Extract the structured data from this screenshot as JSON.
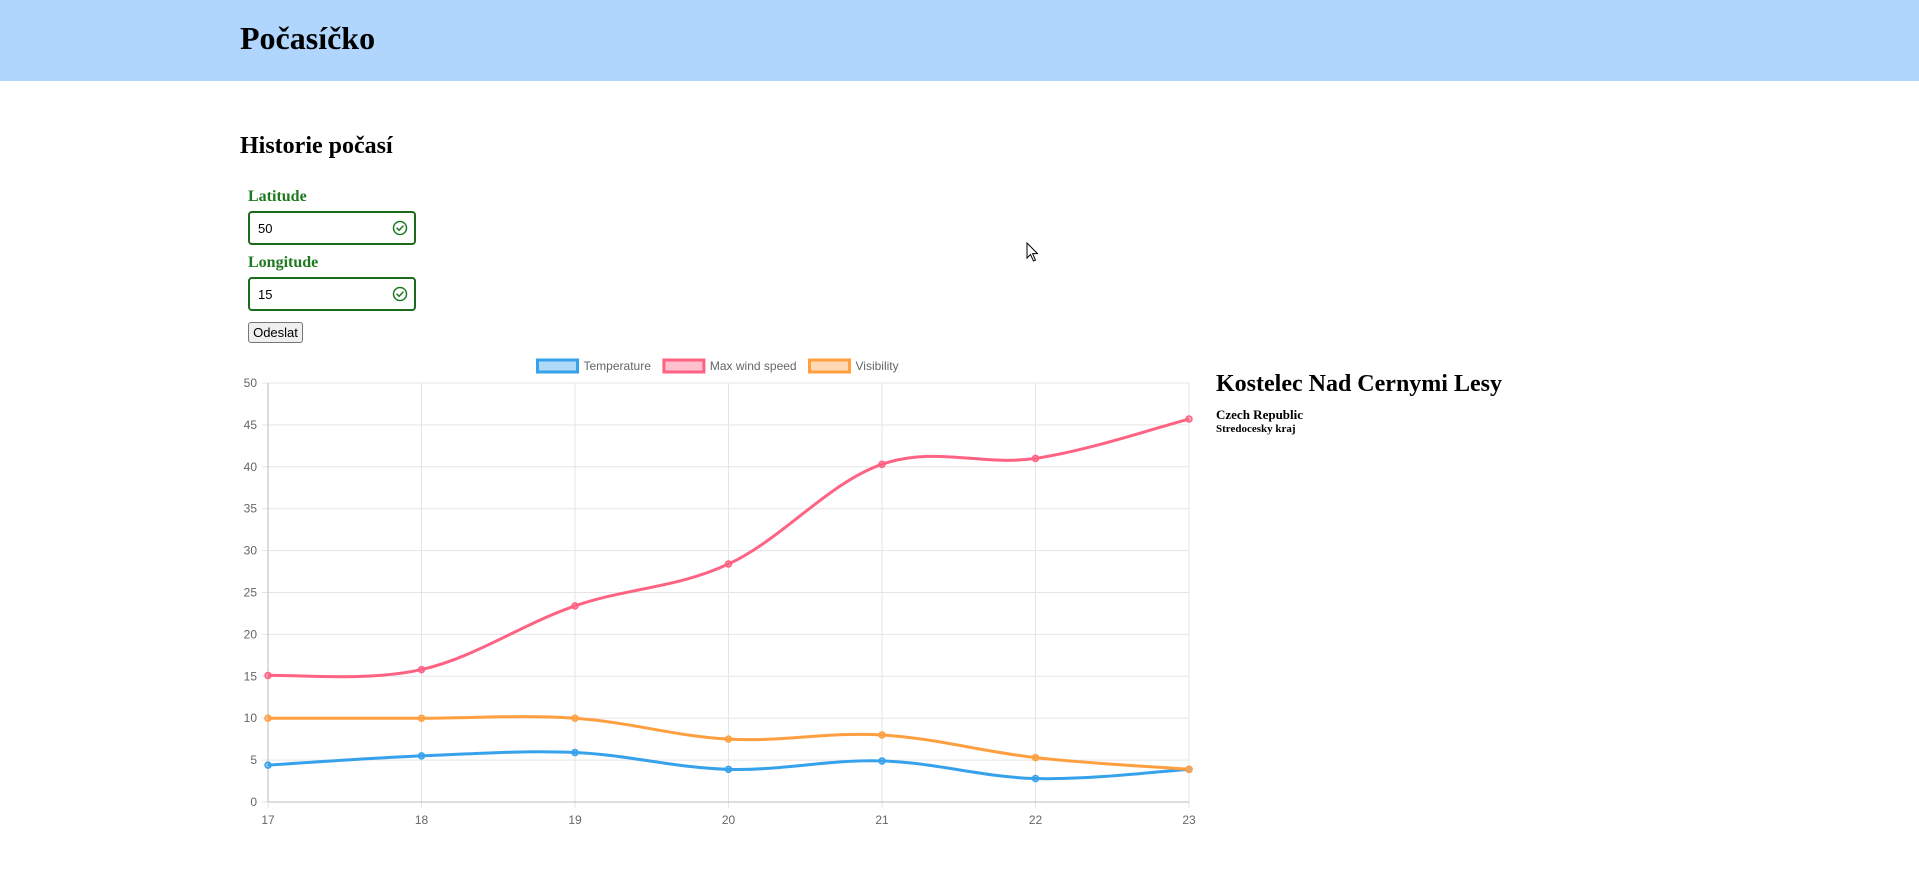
{
  "header": {
    "title": "Počasíčko",
    "bg_color": "#b0d6fe"
  },
  "page": {
    "heading": "Historie počasí"
  },
  "form": {
    "latitude": {
      "label": "Latitude",
      "value": "50"
    },
    "longitude": {
      "label": "Longitude",
      "value": "15"
    },
    "submit_label": "Odeslat",
    "valid_color": "#1f7a1f",
    "valid_icon": "check-circle-icon"
  },
  "location": {
    "name": "Kostelec Nad Cernymi Lesy",
    "country": "Czech Republic",
    "region": "Stredocesky kraj"
  },
  "chart_data": {
    "type": "line",
    "categories": [
      "17",
      "18",
      "19",
      "20",
      "21",
      "22",
      "23"
    ],
    "ylim": [
      0,
      50
    ],
    "yticks": [
      "0",
      "5",
      "10",
      "15",
      "20",
      "25",
      "30",
      "35",
      "40",
      "45",
      "50"
    ],
    "grid": true,
    "legend": "top",
    "series": [
      {
        "name": "Temperature",
        "color": "#36a2eb",
        "values": [
          4.4,
          5.5,
          5.9,
          3.9,
          4.9,
          2.8,
          3.9
        ]
      },
      {
        "name": "Max wind speed",
        "color": "#ff6384",
        "values": [
          15.1,
          15.8,
          23.4,
          28.4,
          40.3,
          41.0,
          45.7
        ]
      },
      {
        "name": "Visibility",
        "color": "#ff9f40",
        "values": [
          10,
          10,
          10,
          7.5,
          8,
          5.3,
          3.9
        ]
      }
    ]
  }
}
